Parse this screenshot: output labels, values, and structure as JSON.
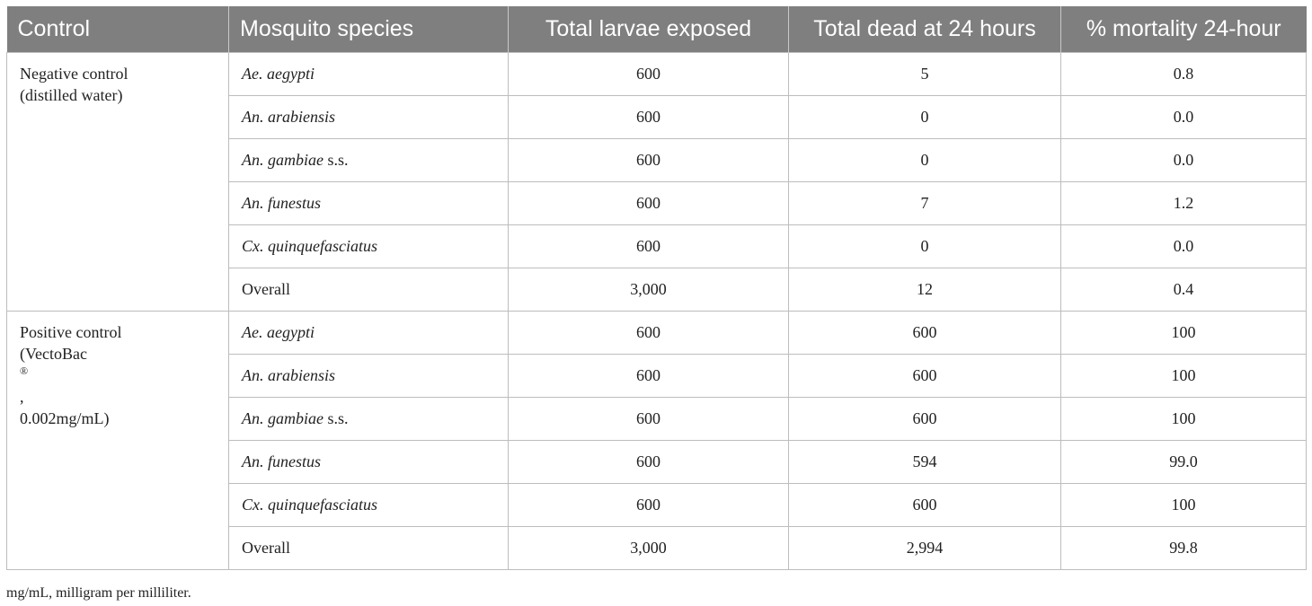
{
  "headers": [
    "Control",
    "Mosquito species",
    "Total larvae exposed",
    "Total dead at 24 hours",
    "% mortality 24-hour"
  ],
  "groups": [
    {
      "label_lines": [
        "Negative control",
        "(distilled water)"
      ],
      "rows": [
        {
          "sp_italic": "Ae. aegypti",
          "sp_rest": "",
          "exposed": "600",
          "dead": "5",
          "mort": "0.8"
        },
        {
          "sp_italic": "An. arabiensis",
          "sp_rest": "",
          "exposed": "600",
          "dead": "0",
          "mort": "0.0"
        },
        {
          "sp_italic": "An. gambiae",
          "sp_rest": " s.s.",
          "exposed": "600",
          "dead": "0",
          "mort": "0.0"
        },
        {
          "sp_italic": "An. funestus",
          "sp_rest": "",
          "exposed": "600",
          "dead": "7",
          "mort": "1.2"
        },
        {
          "sp_italic": "Cx. quinquefasciatus",
          "sp_rest": "",
          "exposed": "600",
          "dead": "0",
          "mort": "0.0"
        },
        {
          "sp_italic": "",
          "sp_rest": "Overall",
          "exposed": "3,000",
          "dead": "12",
          "mort": "0.4"
        }
      ]
    },
    {
      "label_line1": "Positive control",
      "label_line2_pre": "(VectoBac",
      "label_line2_sup": "®",
      "label_line2_post": ",",
      "label_line3": "0.002mg/mL)",
      "rows": [
        {
          "sp_italic": "Ae. aegypti",
          "sp_rest": "",
          "exposed": "600",
          "dead": "600",
          "mort": "100"
        },
        {
          "sp_italic": "An. arabiensis",
          "sp_rest": "",
          "exposed": "600",
          "dead": "600",
          "mort": "100"
        },
        {
          "sp_italic": "An. gambiae",
          "sp_rest": " s.s.",
          "exposed": "600",
          "dead": "600",
          "mort": "100"
        },
        {
          "sp_italic": "An. funestus",
          "sp_rest": "",
          "exposed": "600",
          "dead": "594",
          "mort": "99.0"
        },
        {
          "sp_italic": "Cx. quinquefasciatus",
          "sp_rest": "",
          "exposed": "600",
          "dead": "600",
          "mort": "100"
        },
        {
          "sp_italic": "",
          "sp_rest": "Overall",
          "exposed": "3,000",
          "dead": "2,994",
          "mort": "99.8"
        }
      ]
    }
  ],
  "footnote": "mg/mL, milligram per milliliter."
}
